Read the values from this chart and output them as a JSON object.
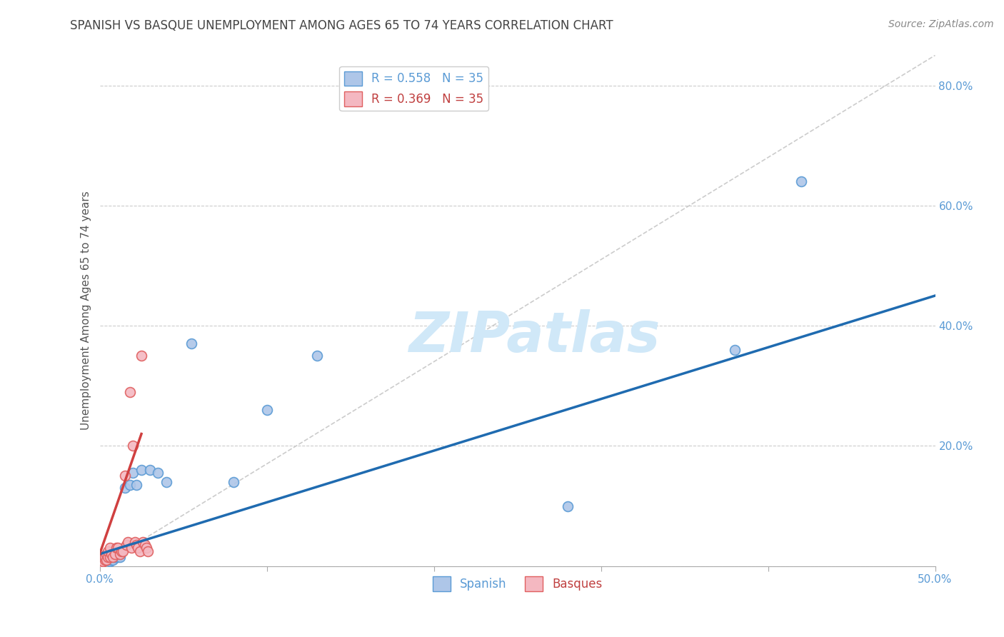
{
  "title": "SPANISH VS BASQUE UNEMPLOYMENT AMONG AGES 65 TO 74 YEARS CORRELATION CHART",
  "source": "Source: ZipAtlas.com",
  "ylabel": "Unemployment Among Ages 65 to 74 years",
  "xlim": [
    0,
    0.5
  ],
  "ylim": [
    0,
    0.85
  ],
  "xticks": [
    0.0,
    0.1,
    0.2,
    0.3,
    0.4,
    0.5
  ],
  "yticks": [
    0.0,
    0.2,
    0.4,
    0.6,
    0.8
  ],
  "xtick_labels": [
    "0.0%",
    "",
    "",
    "",
    "",
    "50.0%"
  ],
  "ytick_labels": [
    "",
    "20.0%",
    "40.0%",
    "60.0%",
    "80.0%"
  ],
  "background_color": "#ffffff",
  "grid_color": "#cccccc",
  "spanish_color": "#aec6e8",
  "basque_color": "#f4b8c1",
  "spanish_edge_color": "#5b9bd5",
  "basque_edge_color": "#e06060",
  "spanish_trend_color": "#1f6bb0",
  "basque_trend_color": "#d04040",
  "diagonal_color": "#cccccc",
  "legend_spanish_label": "R = 0.558   N = 35",
  "legend_basque_label": "R = 0.369   N = 35",
  "scatter_size": 100,
  "spanish_x": [
    0.001,
    0.001,
    0.002,
    0.002,
    0.003,
    0.003,
    0.003,
    0.004,
    0.004,
    0.005,
    0.005,
    0.006,
    0.006,
    0.007,
    0.007,
    0.008,
    0.009,
    0.01,
    0.011,
    0.012,
    0.015,
    0.018,
    0.02,
    0.022,
    0.025,
    0.03,
    0.035,
    0.04,
    0.055,
    0.08,
    0.1,
    0.13,
    0.28,
    0.38,
    0.42
  ],
  "spanish_y": [
    0.01,
    0.005,
    0.008,
    0.015,
    0.01,
    0.012,
    0.015,
    0.01,
    0.02,
    0.012,
    0.015,
    0.008,
    0.012,
    0.01,
    0.015,
    0.01,
    0.015,
    0.015,
    0.015,
    0.015,
    0.13,
    0.135,
    0.155,
    0.135,
    0.16,
    0.16,
    0.155,
    0.14,
    0.37,
    0.14,
    0.26,
    0.35,
    0.1,
    0.36,
    0.64
  ],
  "basque_x": [
    0.001,
    0.001,
    0.002,
    0.002,
    0.003,
    0.003,
    0.004,
    0.004,
    0.005,
    0.005,
    0.006,
    0.006,
    0.007,
    0.008,
    0.009,
    0.01,
    0.011,
    0.012,
    0.013,
    0.014,
    0.015,
    0.016,
    0.017,
    0.018,
    0.019,
    0.02,
    0.021,
    0.022,
    0.023,
    0.024,
    0.025,
    0.026,
    0.027,
    0.028,
    0.029
  ],
  "basque_y": [
    0.005,
    0.01,
    0.008,
    0.015,
    0.01,
    0.015,
    0.01,
    0.02,
    0.015,
    0.025,
    0.015,
    0.03,
    0.02,
    0.015,
    0.02,
    0.03,
    0.03,
    0.02,
    0.025,
    0.025,
    0.15,
    0.035,
    0.04,
    0.29,
    0.03,
    0.2,
    0.04,
    0.035,
    0.03,
    0.025,
    0.35,
    0.04,
    0.035,
    0.03,
    0.025
  ],
  "watermark_text": "ZIPatlas",
  "watermark_color": "#d0e8f8"
}
